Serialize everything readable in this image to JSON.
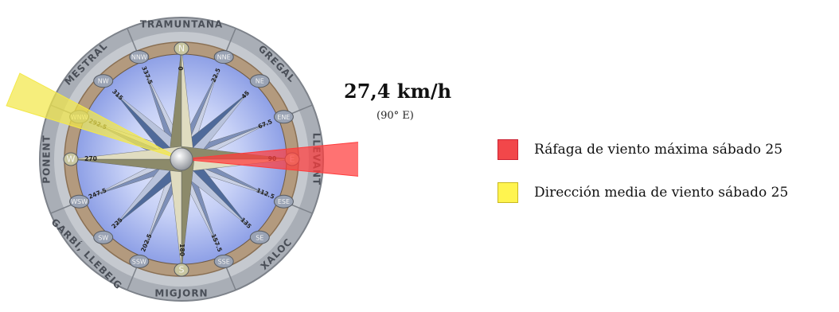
{
  "wind": {
    "speed": "27,4 km/h",
    "direction_text": "(90° E)",
    "gust_direction_deg": 90,
    "mean_direction_deg": 292.5
  },
  "regions": [
    "TRAMUNTANA",
    "GREGAL",
    "LLEVANT",
    "XALOC",
    "MIGJORN",
    "GARBÍ, LLEBEIG",
    "PONENT",
    "MESTRAL"
  ],
  "points": [
    {
      "abbr": "N",
      "deg": "0"
    },
    {
      "abbr": "NNE",
      "deg": "22.5"
    },
    {
      "abbr": "NE",
      "deg": "45"
    },
    {
      "abbr": "ENE",
      "deg": "67.5"
    },
    {
      "abbr": "E",
      "deg": "90"
    },
    {
      "abbr": "ESE",
      "deg": "112.5"
    },
    {
      "abbr": "SE",
      "deg": "135"
    },
    {
      "abbr": "SSE",
      "deg": "157.5"
    },
    {
      "abbr": "S",
      "deg": "180"
    },
    {
      "abbr": "SSW",
      "deg": "202.5"
    },
    {
      "abbr": "SW",
      "deg": "225"
    },
    {
      "abbr": "WSW",
      "deg": "247.5"
    },
    {
      "abbr": "W",
      "deg": "270"
    },
    {
      "abbr": "WNW",
      "deg": "292.5"
    },
    {
      "abbr": "NW",
      "deg": "315"
    },
    {
      "abbr": "NNW",
      "deg": "337.5"
    }
  ],
  "legend": [
    {
      "label": "Ráfaga de viento máxima sábado 25",
      "color": "#f2474a"
    },
    {
      "label": "Dirección media de viento sábado 25",
      "color": "#fff44f"
    }
  ],
  "colors": {
    "gust_sector": "#ff3b3b",
    "mean_sector": "#f3e84a",
    "ring": "#a9aeb6",
    "inner_ring": "#b39a7e",
    "sky": "#aebcf0"
  }
}
